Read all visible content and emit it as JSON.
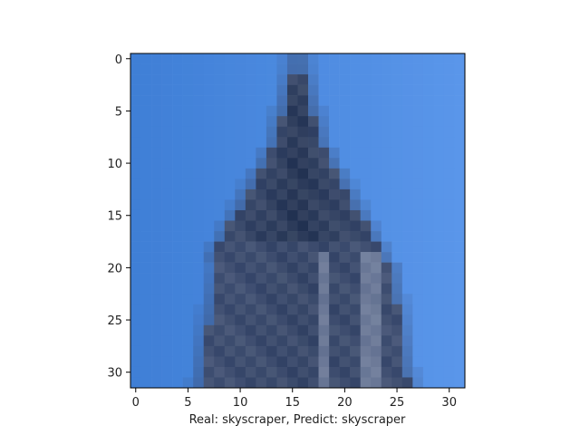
{
  "chart_data": {
    "type": "heatmap",
    "title": "",
    "xlabel": "Real: skyscraper, Predict: skyscraper",
    "ylabel": "",
    "grid": false,
    "legend": "none",
    "xlim": [
      -0.5,
      31.5
    ],
    "ylim": [
      31.5,
      -0.5
    ],
    "image_size": [
      32,
      32
    ],
    "xticks": [
      0,
      5,
      10,
      15,
      20,
      25,
      30
    ],
    "yticks": [
      0,
      5,
      10,
      15,
      20,
      25,
      30
    ],
    "colors": {
      "sky_left": "#3f7fd6",
      "sky_right": "#5a96ea",
      "tower_dark": "#1f2f4f",
      "tower_mid": "#3a4a6e",
      "tower_light": "#8b98b5"
    }
  }
}
